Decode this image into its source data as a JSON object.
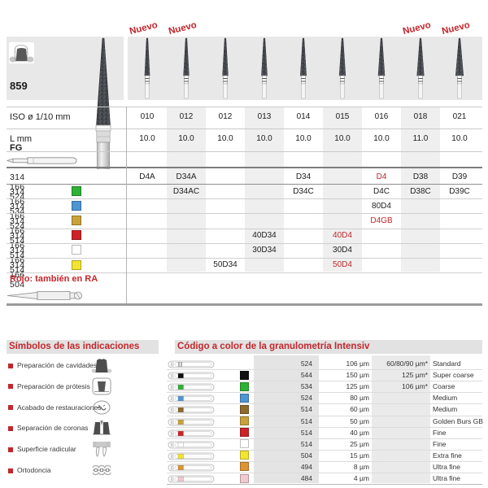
{
  "series": {
    "number": "859"
  },
  "top_table": {
    "nuevo_label": "Nuevo",
    "nuevo_columns": [
      0,
      1,
      7,
      8
    ],
    "iso_label": "ISO ø 1/10 mm",
    "iso_values": [
      "010",
      "012",
      "012",
      "013",
      "014",
      "015",
      "016",
      "018",
      "021"
    ],
    "l_label": "L mm",
    "l_values": [
      "10.0",
      "10.0",
      "10.0",
      "10.0",
      "10.0",
      "10.0",
      "10.0",
      "11.0",
      "10.0"
    ],
    "fg_label": "FG",
    "code_rows": [
      {
        "part": "314 166 524",
        "chip": null,
        "cells": [
          {
            "col": 0,
            "text": "D4A"
          },
          {
            "col": 1,
            "text": "D34A"
          },
          {
            "col": 4,
            "text": "D34"
          },
          {
            "col": 6,
            "text": "D4",
            "red": true
          },
          {
            "col": 7,
            "text": "D38"
          },
          {
            "col": 8,
            "text": "D39"
          }
        ]
      },
      {
        "part": "314 166 534",
        "chip": "green",
        "cells": [
          {
            "col": 1,
            "text": "D34AC"
          },
          {
            "col": 4,
            "text": "D34C"
          },
          {
            "col": 6,
            "text": "D4C"
          },
          {
            "col": 7,
            "text": "D38C"
          },
          {
            "col": 8,
            "text": "D39C"
          }
        ]
      },
      {
        "part": "314 166 524",
        "chip": "blue",
        "cells": [
          {
            "col": 6,
            "text": "80D4"
          }
        ]
      },
      {
        "part": "314 166 514",
        "chip": "gold",
        "cells": [
          {
            "col": 6,
            "text": "D4GB",
            "red": true
          }
        ]
      },
      {
        "part": "314 166 514",
        "chip": "red",
        "cells": [
          {
            "col": 3,
            "text": "40D34"
          },
          {
            "col": 5,
            "text": "40D4",
            "red": true
          }
        ]
      },
      {
        "part": "314 166 514",
        "chip": "white",
        "cells": [
          {
            "col": 3,
            "text": "30D34"
          },
          {
            "col": 5,
            "text": "30D4"
          }
        ]
      },
      {
        "part": "314 166 504",
        "chip": "yellow",
        "cells": [
          {
            "col": 2,
            "text": "50D34"
          },
          {
            "col": 5,
            "text": "50D4",
            "red": true
          }
        ]
      }
    ],
    "ra_note": "Rojo: también en RA"
  },
  "symbols_section": {
    "title": "Símbolos de las indicaciones",
    "items": [
      {
        "label": "Preparación de cavidades",
        "icon": "cavity-prep-icon"
      },
      {
        "label": "Preparación de prótesis",
        "icon": "prosthesis-prep-icon"
      },
      {
        "label": "Acabado de restauraciones",
        "icon": "restoration-finish-icon"
      },
      {
        "label": "Separación de coronas",
        "icon": "crown-separation-icon"
      },
      {
        "label": "Superficie radicular",
        "icon": "root-surface-icon"
      },
      {
        "label": "Ortodoncia",
        "icon": "orthodontics-icon"
      }
    ]
  },
  "grit_section": {
    "title": "Código a color de la granulometría Intensiv",
    "rows": [
      {
        "chip": null,
        "code": "524",
        "grit": "106 µm",
        "alt": "60/80/90 µm*",
        "name": "Standard"
      },
      {
        "chip": "black",
        "code": "544",
        "grit": "150 µm",
        "alt": "125 µm*",
        "name": "Super coarse"
      },
      {
        "chip": "green",
        "code": "534",
        "grit": "125 µm",
        "alt": "106 µm*",
        "name": "Coarse"
      },
      {
        "chip": "blue",
        "code": "524",
        "grit": "80 µm",
        "alt": "",
        "name": "Medium"
      },
      {
        "chip": "brown",
        "code": "514",
        "grit": "60 µm",
        "alt": "",
        "name": "Medium"
      },
      {
        "chip": "gold",
        "code": "514",
        "grit": "50 µm",
        "alt": "",
        "name": "Golden Burs GB"
      },
      {
        "chip": "red",
        "code": "514",
        "grit": "40 µm",
        "alt": "",
        "name": "Fine"
      },
      {
        "chip": "white",
        "code": "514",
        "grit": "25 µm",
        "alt": "",
        "name": "Fine"
      },
      {
        "chip": "yellow",
        "code": "504",
        "grit": "15 µm",
        "alt": "",
        "name": "Extra fine"
      },
      {
        "chip": "orange",
        "code": "494",
        "grit": "8 µm",
        "alt": "",
        "name": "Ultra fine"
      },
      {
        "chip": "pink",
        "code": "484",
        "grit": "4 µm",
        "alt": "",
        "name": "Ultra fine"
      }
    ]
  },
  "colors": {
    "accent_red": "#c1272d",
    "chips": {
      "black": "#111111",
      "green": "#2eb135",
      "blue": "#4e96d3",
      "brown": "#8f6a2e",
      "gold": "#c9a23b",
      "red": "#cd2328",
      "white": "#ffffff",
      "yellow": "#f2e431",
      "orange": "#df9434",
      "pink": "#f2c9d1"
    }
  }
}
